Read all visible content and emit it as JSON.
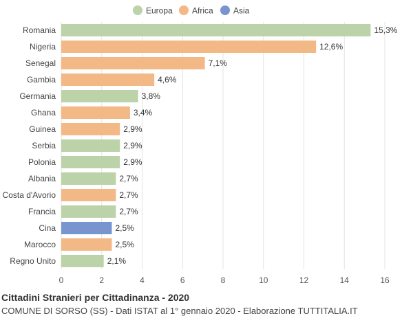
{
  "chart_data": {
    "type": "bar",
    "orientation": "horizontal",
    "title": "Cittadini Stranieri per Cittadinanza - 2020",
    "subtitle": "COMUNE DI SORSO (SS) - Dati ISTAT al 1° gennaio 2020 - Elaborazione TUTTITALIA.IT",
    "legend": {
      "position": "top",
      "items": [
        {
          "name": "Europa",
          "color": "#bcd2a8"
        },
        {
          "name": "Africa",
          "color": "#f2b885"
        },
        {
          "name": "Asia",
          "color": "#7895cf"
        }
      ]
    },
    "categories": [
      "Romania",
      "Nigeria",
      "Senegal",
      "Gambia",
      "Germania",
      "Ghana",
      "Guinea",
      "Serbia",
      "Polonia",
      "Albania",
      "Costa d'Avorio",
      "Francia",
      "Cina",
      "Marocco",
      "Regno Unito"
    ],
    "values": [
      15.3,
      12.6,
      7.1,
      4.6,
      3.8,
      3.4,
      2.9,
      2.9,
      2.9,
      2.7,
      2.7,
      2.7,
      2.5,
      2.5,
      2.1
    ],
    "value_labels": [
      "15,3%",
      "12,6%",
      "7,1%",
      "4,6%",
      "3,8%",
      "3,4%",
      "2,9%",
      "2,9%",
      "2,9%",
      "2,7%",
      "2,7%",
      "2,7%",
      "2,5%",
      "2,5%",
      "2,1%"
    ],
    "groups": [
      "Europa",
      "Africa",
      "Africa",
      "Africa",
      "Europa",
      "Africa",
      "Africa",
      "Europa",
      "Europa",
      "Europa",
      "Africa",
      "Europa",
      "Asia",
      "Africa",
      "Europa"
    ],
    "xlim": [
      0,
      16
    ],
    "xticks": [
      0,
      2,
      4,
      6,
      8,
      10,
      12,
      14,
      16
    ],
    "grid": true
  }
}
